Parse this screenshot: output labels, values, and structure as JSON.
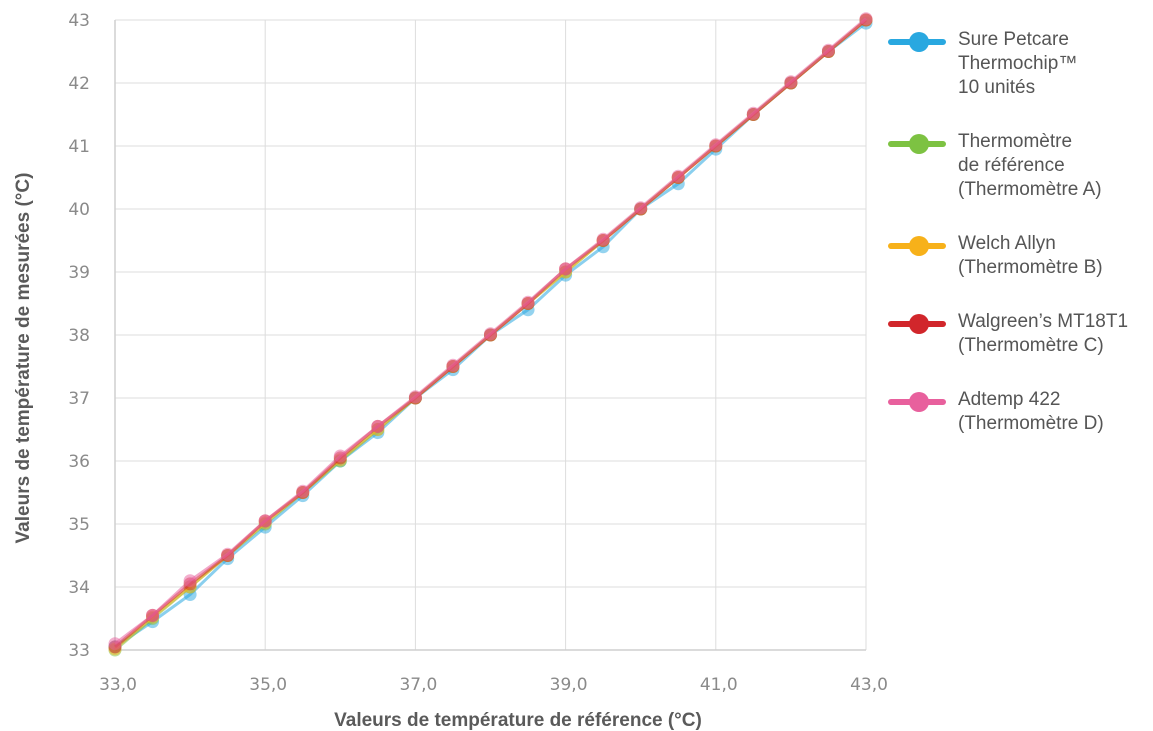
{
  "chart_data": {
    "type": "line",
    "xlabel": "Valeurs de température de référence (°C)",
    "ylabel": "Valeurs de température de mesurées (°C)",
    "xlim": [
      33,
      43
    ],
    "ylim": [
      33,
      43
    ],
    "x_ticks": [
      "33,0",
      "35,0",
      "37,0",
      "39,0",
      "41,0",
      "43,0"
    ],
    "y_ticks": [
      "33",
      "34",
      "35",
      "36",
      "37",
      "38",
      "39",
      "40",
      "41",
      "42",
      "43"
    ],
    "grid": true,
    "legend_position": "right",
    "x": [
      33,
      33.5,
      34,
      34.5,
      35,
      35.5,
      36,
      36.5,
      37,
      37.5,
      38,
      38.5,
      39,
      39.5,
      40,
      40.5,
      41,
      41.5,
      42,
      42.5,
      43
    ],
    "series": [
      {
        "name": "Sure Petcare\nThermochip™\n10 unités",
        "color": "#29a8e0",
        "values": [
          33.05,
          33.45,
          33.88,
          34.45,
          34.95,
          35.45,
          36.0,
          36.45,
          37.0,
          37.45,
          38.0,
          38.4,
          38.95,
          39.4,
          40.0,
          40.4,
          40.95,
          41.5,
          42.0,
          42.5,
          42.95
        ]
      },
      {
        "name": "Thermomètre\nde référence\n(Thermomètre A)",
        "color": "#7dc242",
        "values": [
          33.0,
          33.5,
          34.0,
          34.5,
          35.0,
          35.5,
          36.0,
          36.5,
          37.0,
          37.5,
          38.0,
          38.5,
          39.0,
          39.5,
          40.0,
          40.5,
          41.0,
          41.5,
          42.0,
          42.5,
          43.0
        ]
      },
      {
        "name": "Welch Allyn\n(Thermomètre B)",
        "color": "#f7b11a",
        "values": [
          33.02,
          33.52,
          34.0,
          34.5,
          35.02,
          35.5,
          36.02,
          36.5,
          37.0,
          37.5,
          38.0,
          38.5,
          39.0,
          39.5,
          40.0,
          40.5,
          41.0,
          41.5,
          42.0,
          42.5,
          43.0
        ]
      },
      {
        "name": "Walgreen’s MT18T1\n(Thermomètre C)",
        "color": "#d1262b",
        "values": [
          33.05,
          33.55,
          34.05,
          34.5,
          35.05,
          35.5,
          36.05,
          36.55,
          37.0,
          37.5,
          38.0,
          38.5,
          39.05,
          39.5,
          40.0,
          40.5,
          41.0,
          41.5,
          42.0,
          42.5,
          43.0
        ]
      },
      {
        "name": "Adtemp 422\n(Thermomètre D)",
        "color": "#e8609d",
        "values": [
          33.1,
          33.55,
          34.1,
          34.52,
          35.05,
          35.52,
          36.08,
          36.55,
          37.02,
          37.52,
          38.02,
          38.52,
          39.05,
          39.52,
          40.02,
          40.52,
          41.02,
          41.52,
          42.02,
          42.52,
          43.02
        ]
      }
    ]
  }
}
